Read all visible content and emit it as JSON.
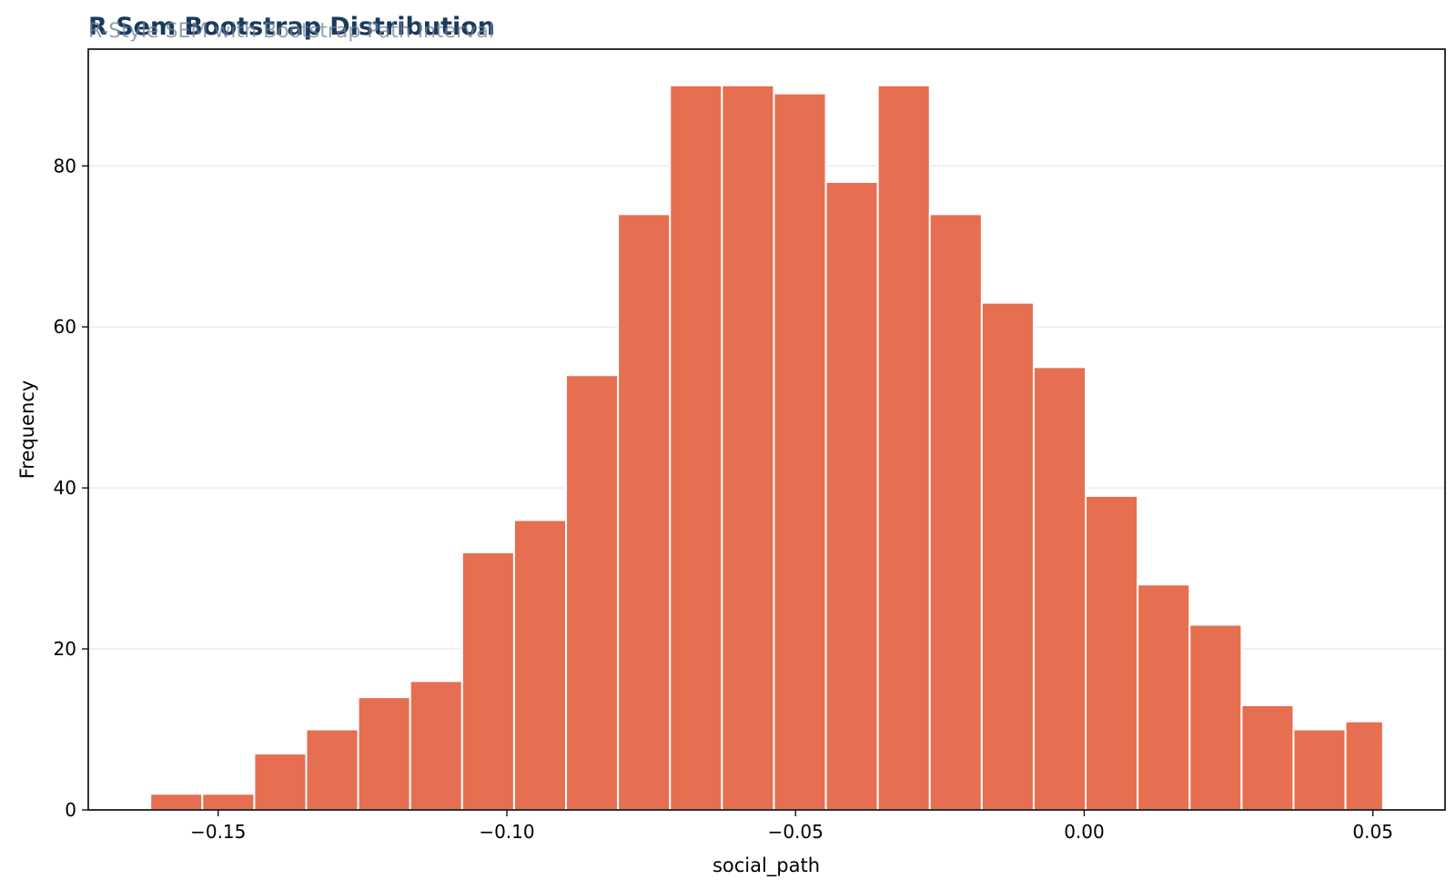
{
  "chart_data": {
    "type": "bar",
    "title": "R Sem Bootstrap Distribution",
    "subtitle": "R-Style SEM with Bootstrap Path Interval",
    "xlabel": "social_path",
    "ylabel": "Frequency",
    "bar_color": "#e56f50",
    "bin_edges": [
      -0.16175,
      -0.15275,
      -0.14375,
      -0.13475,
      -0.12575,
      -0.11675,
      -0.10775,
      -0.09875,
      -0.08975,
      -0.08075,
      -0.07175,
      -0.06275,
      -0.05375,
      -0.04475,
      -0.03575,
      -0.02675,
      -0.01775,
      -0.00875,
      0.00025,
      0.00925,
      0.01825,
      0.02725,
      0.03625,
      0.04525,
      0.05175
    ],
    "values": [
      2,
      2,
      7,
      10,
      14,
      16,
      32,
      36,
      54,
      74,
      90,
      90,
      89,
      78,
      90,
      74,
      63,
      55,
      39,
      28,
      23,
      13,
      10,
      11
    ],
    "xlim": [
      -0.1725,
      0.0625
    ],
    "ylim": [
      0,
      94.5
    ],
    "x_ticks": [
      -0.15,
      -0.1,
      -0.05,
      0.0,
      0.05
    ],
    "x_tick_labels": [
      "−0.15",
      "−0.10",
      "−0.05",
      "0.00",
      "0.05"
    ],
    "y_ticks": [
      0,
      20,
      40,
      60,
      80
    ],
    "y_tick_labels": [
      "0",
      "20",
      "40",
      "60",
      "80"
    ],
    "grid": "horizontal",
    "legend": "none"
  }
}
